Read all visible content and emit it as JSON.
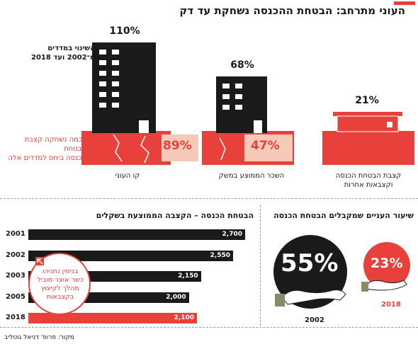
{
  "title": "העוני מתרחב: הבטחת ההכנסה נשחקת עד דק",
  "colors": {
    "accent": "#e8413b",
    "dark": "#1a1a1a",
    "light": "#f6c9b8"
  },
  "top_chart": {
    "legend_change": [
      "השינוי במדדים",
      "מ־2002 ועד 2018"
    ],
    "legend_eroded": [
      "בכמה נשחקה קצבת הבטחת",
      "הכנסה ביחס למדדים אלה"
    ],
    "items": [
      {
        "label": [
          "קו העוני"
        ],
        "change": "110%",
        "eroded": "89%"
      },
      {
        "label": [
          "השכר הממוצע במשק"
        ],
        "change": "68%",
        "eroded": "47%"
      },
      {
        "label": [
          "קצבת הבטחת הכנסה",
          "וקצבאות אחרות"
        ],
        "change": "21%",
        "eroded": ""
      }
    ]
  },
  "chart_data": [
    {
      "type": "bar",
      "title": "הבטחת הכנסה – הקצבה הממוצעת בשקלים",
      "categories": [
        "2001",
        "2002",
        "2003",
        "2005",
        "2018"
      ],
      "values": [
        2700,
        2550,
        2150,
        2000,
        2100
      ],
      "value_labels": [
        "2,700",
        "2,550",
        "2,150",
        "2,000",
        "2,100"
      ],
      "highlight": "2018",
      "annotation": [
        "בנימין נתניהו",
        "כשר אוצר מוביל",
        "מהלך לקיצוץ",
        "בקצבאות"
      ]
    },
    {
      "type": "pie",
      "title": "שיעור העניים שמקבלים הבטחת הכנסה",
      "categories": [
        "2002",
        "2018"
      ],
      "values": [
        55,
        23
      ],
      "value_labels": [
        "55%",
        "23%"
      ]
    }
  ],
  "source": "מקור: פרופ' דניאל גוטליב"
}
